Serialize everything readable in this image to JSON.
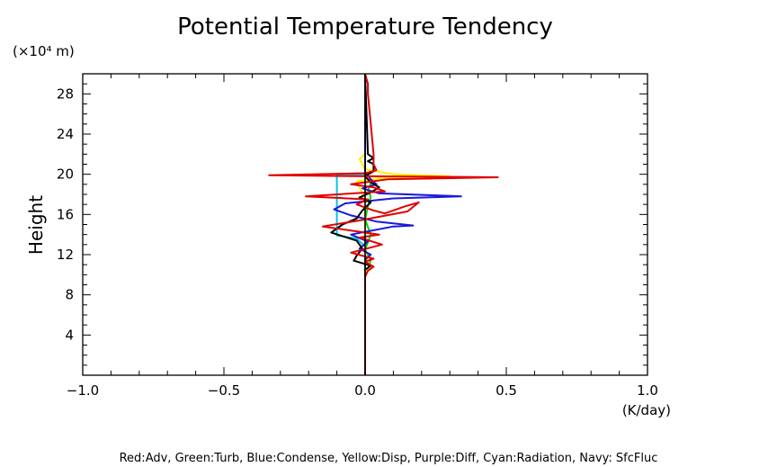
{
  "chart_data": {
    "type": "line",
    "title": "Potential Temperature Tendency",
    "ylabel": "Height",
    "yunit": "(×10⁴ m)",
    "xunit": "(K/day)",
    "xlim": [
      -1.0,
      1.0
    ],
    "ylim": [
      0,
      30
    ],
    "xticks": [
      -1.0,
      -0.5,
      0.0,
      0.5,
      1.0
    ],
    "xtick_labels": [
      "−1.0",
      "−0.5",
      "0.0",
      "0.5",
      "1.0"
    ],
    "yticks": [
      4,
      8,
      12,
      16,
      20,
      24,
      28
    ],
    "ytick_labels": [
      "4",
      "8",
      "12",
      "16",
      "20",
      "24",
      "28"
    ],
    "legend_text": "Red:Adv, Green:Turb, Blue:Condense, Yellow:Disp, Purple:Diff, Cyan:Radiation, Navy: SfcFluc",
    "series": [
      {
        "color": "#00c8e6",
        "points": [
          [
            0,
            0
          ],
          [
            0,
            10.6
          ],
          [
            0,
            12.8
          ],
          [
            -0.03,
            13.6
          ],
          [
            -0.1,
            13.9
          ],
          [
            -0.1,
            17
          ],
          [
            -0.1,
            20
          ],
          [
            0,
            20
          ],
          [
            0,
            30
          ]
        ]
      },
      {
        "color": "#00d400",
        "points": [
          [
            0,
            0.2
          ],
          [
            0,
            9.8
          ],
          [
            0.01,
            10.5
          ],
          [
            0.02,
            11.5
          ],
          [
            0,
            12.5
          ],
          [
            0.02,
            14
          ],
          [
            0,
            15.5
          ],
          [
            0.01,
            16.8
          ],
          [
            0.02,
            17.8
          ],
          [
            0.01,
            18.4
          ],
          [
            0.02,
            19.1
          ],
          [
            0,
            19.8
          ],
          [
            0,
            30
          ]
        ]
      },
      {
        "color": "#ffee00",
        "points": [
          [
            0,
            0
          ],
          [
            0,
            10.2
          ],
          [
            0.02,
            10.7
          ],
          [
            0.01,
            11.3
          ],
          [
            0,
            12
          ],
          [
            0,
            17.5
          ],
          [
            -0.03,
            19.3
          ],
          [
            0.05,
            19.6
          ],
          [
            0.3,
            19.8
          ],
          [
            0.1,
            20
          ],
          [
            0,
            20.5
          ],
          [
            -0.02,
            21.5
          ],
          [
            0,
            22
          ],
          [
            0,
            30
          ]
        ]
      },
      {
        "color": "#1a1adc",
        "points": [
          [
            0,
            0
          ],
          [
            0,
            11.5
          ],
          [
            0.02,
            12
          ],
          [
            -0.02,
            12.6
          ],
          [
            0.01,
            13.3
          ],
          [
            -0.05,
            14
          ],
          [
            0.1,
            14.8
          ],
          [
            0.17,
            14.9
          ],
          [
            0.04,
            15.3
          ],
          [
            -0.05,
            15.9
          ],
          [
            -0.11,
            16.5
          ],
          [
            -0.07,
            17.1
          ],
          [
            0.1,
            17.6
          ],
          [
            0.34,
            17.8
          ],
          [
            0.05,
            18.1
          ],
          [
            -0.01,
            18.6
          ],
          [
            0.04,
            19
          ],
          [
            0.02,
            19.5
          ],
          [
            0,
            20.2
          ],
          [
            0,
            30
          ]
        ]
      },
      {
        "color": "#000000",
        "points": [
          [
            0,
            0
          ],
          [
            0,
            10.5
          ],
          [
            0.02,
            10.9
          ],
          [
            -0.04,
            11.4
          ],
          [
            -0.03,
            11.9
          ],
          [
            -0.01,
            12.6
          ],
          [
            -0.03,
            13.4
          ],
          [
            -0.12,
            14.2
          ],
          [
            -0.08,
            15
          ],
          [
            -0.03,
            15.6
          ],
          [
            -0.01,
            16.4
          ],
          [
            0.02,
            17.2
          ],
          [
            -0.02,
            17.7
          ],
          [
            0.02,
            18.2
          ],
          [
            0.05,
            18.7
          ],
          [
            0.02,
            19.2
          ],
          [
            0,
            19.8
          ],
          [
            0.03,
            20.3
          ],
          [
            0.03,
            21
          ],
          [
            0.01,
            21.3
          ],
          [
            0.03,
            21.6
          ],
          [
            0.01,
            22
          ],
          [
            0,
            30
          ]
        ]
      },
      {
        "color": "#e00000",
        "points": [
          [
            0,
            0.3
          ],
          [
            0,
            9.8
          ],
          [
            0.01,
            10.4
          ],
          [
            0.03,
            10.8
          ],
          [
            0,
            11.3
          ],
          [
            0.03,
            11.6
          ],
          [
            -0.05,
            12.2
          ],
          [
            0.06,
            13
          ],
          [
            -0.02,
            13.7
          ],
          [
            0.05,
            14
          ],
          [
            -0.15,
            14.8
          ],
          [
            -0.02,
            15.4
          ],
          [
            0.15,
            16.3
          ],
          [
            0.19,
            17.2
          ],
          [
            0.14,
            16.8
          ],
          [
            0.07,
            16.1
          ],
          [
            0.03,
            16.4
          ],
          [
            -0.03,
            17
          ],
          [
            0.01,
            17.5
          ],
          [
            -0.21,
            17.8
          ],
          [
            0.07,
            18.3
          ],
          [
            0.03,
            18.7
          ],
          [
            -0.05,
            19
          ],
          [
            0.08,
            19.5
          ],
          [
            0.47,
            19.7
          ],
          [
            0.01,
            19.8
          ],
          [
            -0.34,
            19.9
          ],
          [
            0,
            20.1
          ],
          [
            0.04,
            20.4
          ],
          [
            0.03,
            21
          ],
          [
            0.03,
            22
          ],
          [
            0.02,
            25
          ],
          [
            0.01,
            28
          ],
          [
            0.01,
            29
          ],
          [
            0,
            30
          ]
        ]
      }
    ]
  }
}
